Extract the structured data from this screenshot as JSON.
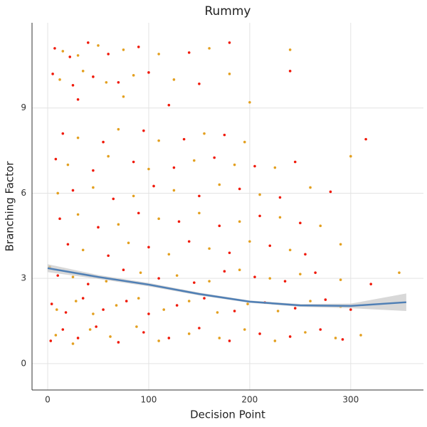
{
  "chart_data": {
    "type": "scatter",
    "title": "Rummy",
    "x_label": "Decision Point",
    "y_label": "Branching Factor",
    "xlim": [
      -15.5,
      372
    ],
    "ylim": [
      -0.93,
      12.0
    ],
    "xticks": [
      0,
      100,
      200,
      300
    ],
    "yticks": [
      0,
      3,
      6,
      9
    ],
    "grid": true,
    "series": [
      {
        "color": "#f01a0a",
        "x": [
          3,
          15,
          30,
          48,
          70,
          95,
          120,
          150,
          180,
          210,
          240,
          270,
          292,
          4,
          18,
          35,
          55,
          78,
          100,
          128,
          155,
          185,
          215,
          245,
          275,
          300,
          10,
          40,
          75,
          110,
          145,
          175,
          205,
          235,
          265,
          320,
          20,
          60,
          100,
          140,
          180,
          220,
          255,
          12,
          50,
          90,
          130,
          170,
          210,
          250,
          25,
          65,
          105,
          150,
          190,
          230,
          280,
          8,
          45,
          85,
          125,
          165,
          205,
          245,
          15,
          55,
          95,
          135,
          175,
          315,
          30,
          120,
          5,
          25,
          45,
          70,
          100,
          150,
          240,
          7,
          22,
          40,
          60,
          90,
          140,
          180
        ],
        "values": [
          0.8,
          1.2,
          0.9,
          1.3,
          0.75,
          1.1,
          0.9,
          1.25,
          0.8,
          1.05,
          0.95,
          1.2,
          0.85,
          2.1,
          1.8,
          2.3,
          1.9,
          2.2,
          1.75,
          2.05,
          2.3,
          1.85,
          2.15,
          1.95,
          2.25,
          1.9,
          3.1,
          2.8,
          3.3,
          3.0,
          2.85,
          3.25,
          3.05,
          2.9,
          3.2,
          2.8,
          4.2,
          3.8,
          4.1,
          4.3,
          3.9,
          4.15,
          3.85,
          5.1,
          4.8,
          5.3,
          5.0,
          4.85,
          5.2,
          4.95,
          6.1,
          5.8,
          6.25,
          5.9,
          6.15,
          5.85,
          6.05,
          7.2,
          6.8,
          7.1,
          6.9,
          7.25,
          6.95,
          7.1,
          8.1,
          7.8,
          8.2,
          7.9,
          8.05,
          7.9,
          9.3,
          9.1,
          10.2,
          9.8,
          10.1,
          9.9,
          10.25,
          9.85,
          10.3,
          11.1,
          10.8,
          11.3,
          10.9,
          11.15,
          10.95,
          11.3
        ]
      },
      {
        "color": "#e3a020",
        "x": [
          8,
          25,
          42,
          62,
          88,
          110,
          140,
          170,
          195,
          225,
          255,
          285,
          310,
          9,
          28,
          45,
          68,
          90,
          115,
          140,
          168,
          198,
          228,
          260,
          290,
          2,
          25,
          58,
          92,
          128,
          160,
          190,
          220,
          250,
          290,
          348,
          35,
          80,
          120,
          160,
          200,
          240,
          290,
          30,
          70,
          110,
          150,
          190,
          230,
          270,
          10,
          45,
          85,
          125,
          170,
          210,
          260,
          20,
          60,
          100,
          145,
          185,
          225,
          300,
          30,
          70,
          110,
          155,
          195,
          75,
          200,
          12,
          35,
          58,
          85,
          125,
          180,
          15,
          30,
          50,
          75,
          110,
          160,
          240
        ],
        "values": [
          1.0,
          0.7,
          1.2,
          0.95,
          1.3,
          0.8,
          1.05,
          0.9,
          1.2,
          0.8,
          1.1,
          0.9,
          1.0,
          1.9,
          2.2,
          1.75,
          2.05,
          2.3,
          1.9,
          2.2,
          1.8,
          2.1,
          1.85,
          2.2,
          2.0,
          3.4,
          3.05,
          2.9,
          3.2,
          3.1,
          2.9,
          3.3,
          3.0,
          3.15,
          2.95,
          3.2,
          4.0,
          4.25,
          3.85,
          4.05,
          4.3,
          4.0,
          4.2,
          5.25,
          4.9,
          5.1,
          5.3,
          5.0,
          5.15,
          4.85,
          6.0,
          6.2,
          5.9,
          6.1,
          6.3,
          5.95,
          6.2,
          7.0,
          7.3,
          6.85,
          7.15,
          7.0,
          6.9,
          7.3,
          7.95,
          8.25,
          7.85,
          8.1,
          7.8,
          9.4,
          9.2,
          10.0,
          10.3,
          9.9,
          10.15,
          10.0,
          10.2,
          11.0,
          10.85,
          11.2,
          11.05,
          10.9,
          11.1,
          11.05
        ]
      }
    ],
    "smooth": {
      "color": "#4f7fb5",
      "band_color": "#c8c8c8",
      "x": [
        0,
        50,
        100,
        150,
        200,
        250,
        300,
        355
      ],
      "values": [
        3.36,
        3.05,
        2.78,
        2.45,
        2.18,
        2.05,
        2.03,
        2.16
      ],
      "lower": [
        3.22,
        2.98,
        2.72,
        2.4,
        2.14,
        2.0,
        1.95,
        1.85
      ],
      "upper": [
        3.5,
        3.12,
        2.84,
        2.5,
        2.22,
        2.1,
        2.11,
        2.47
      ]
    }
  }
}
